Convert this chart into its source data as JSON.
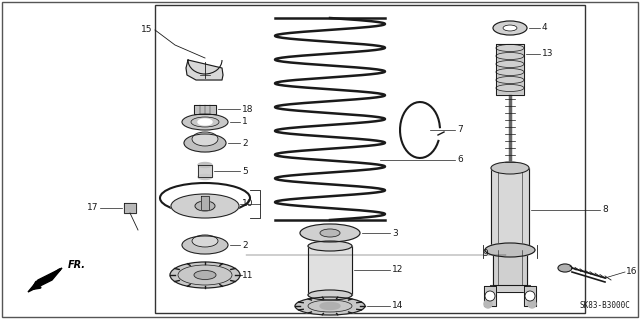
{
  "bg_color": "#ffffff",
  "border_color": "#333333",
  "line_color": "#1a1a1a",
  "diagram_code": "SK83-B3000C",
  "figsize": [
    6.4,
    3.19
  ],
  "dpi": 100
}
